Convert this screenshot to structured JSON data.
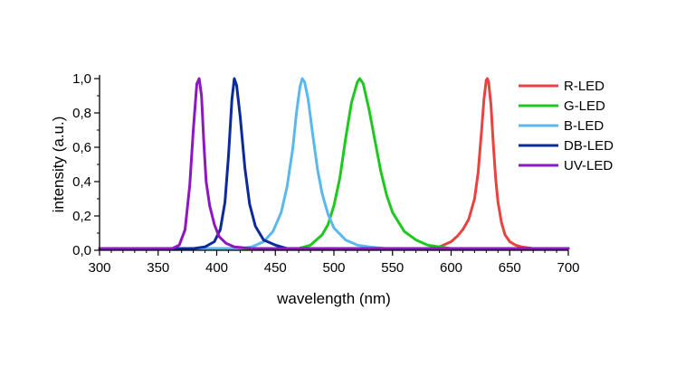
{
  "chart_data": {
    "type": "line",
    "title": "",
    "xlabel": "wavelength (nm)",
    "ylabel": "intensity (a.u.)",
    "xlim": [
      300,
      700
    ],
    "ylim": [
      0,
      1.0
    ],
    "x_ticks": [
      300,
      350,
      400,
      450,
      500,
      550,
      600,
      650,
      700
    ],
    "x_tick_labels": [
      "300",
      "350",
      "400",
      "450",
      "500",
      "550",
      "600",
      "650",
      "700"
    ],
    "y_ticks": [
      0,
      0.2,
      0.4,
      0.6,
      0.8,
      1.0
    ],
    "y_tick_labels": [
      "0,0",
      "0,2",
      "0,4",
      "0,6",
      "0,8",
      "1,0"
    ],
    "grid": false,
    "legend_position": "top-right",
    "series": [
      {
        "name": "R-LED",
        "color": "#e8433f",
        "x": [
          300,
          580,
          590,
          600,
          605,
          610,
          615,
          620,
          623,
          626,
          628,
          630,
          631,
          632,
          634,
          636,
          638,
          640,
          643,
          646,
          650,
          655,
          660,
          670,
          680,
          700
        ],
        "y": [
          0.01,
          0.01,
          0.02,
          0.05,
          0.08,
          0.12,
          0.18,
          0.3,
          0.45,
          0.7,
          0.88,
          0.99,
          1.0,
          0.98,
          0.85,
          0.62,
          0.42,
          0.28,
          0.16,
          0.09,
          0.05,
          0.03,
          0.02,
          0.01,
          0.01,
          0.01
        ]
      },
      {
        "name": "G-LED",
        "color": "#1ec81e",
        "x": [
          300,
          470,
          480,
          490,
          495,
          500,
          505,
          510,
          515,
          520,
          522,
          525,
          530,
          535,
          540,
          545,
          550,
          560,
          570,
          580,
          590,
          600,
          620,
          700
        ],
        "y": [
          0.01,
          0.01,
          0.03,
          0.09,
          0.15,
          0.26,
          0.42,
          0.65,
          0.86,
          0.98,
          1.0,
          0.97,
          0.82,
          0.64,
          0.46,
          0.32,
          0.22,
          0.11,
          0.06,
          0.03,
          0.02,
          0.01,
          0.01,
          0.01
        ]
      },
      {
        "name": "B-LED",
        "color": "#5ab8ee",
        "x": [
          300,
          420,
          430,
          440,
          448,
          455,
          460,
          465,
          468,
          471,
          473,
          475,
          478,
          482,
          486,
          490,
          495,
          500,
          510,
          520,
          530,
          545,
          560,
          700
        ],
        "y": [
          0.01,
          0.01,
          0.02,
          0.05,
          0.11,
          0.22,
          0.37,
          0.6,
          0.8,
          0.95,
          1.0,
          0.98,
          0.88,
          0.67,
          0.47,
          0.33,
          0.21,
          0.13,
          0.06,
          0.03,
          0.02,
          0.01,
          0.01,
          0.01
        ]
      },
      {
        "name": "DB-LED",
        "color": "#0d2a9c",
        "x": [
          300,
          380,
          390,
          398,
          403,
          407,
          410,
          413,
          415,
          417,
          420,
          424,
          428,
          433,
          440,
          450,
          460,
          480,
          700
        ],
        "y": [
          0.01,
          0.01,
          0.02,
          0.05,
          0.12,
          0.28,
          0.55,
          0.88,
          1.0,
          0.96,
          0.78,
          0.48,
          0.27,
          0.14,
          0.06,
          0.03,
          0.01,
          0.01,
          0.01
        ]
      },
      {
        "name": "UV-LED",
        "color": "#8e17bf",
        "x": [
          300,
          362,
          368,
          373,
          377,
          380,
          383,
          385,
          387,
          389,
          391,
          394,
          398,
          402,
          408,
          415,
          430,
          700
        ],
        "y": [
          0.01,
          0.01,
          0.03,
          0.12,
          0.38,
          0.7,
          0.97,
          1.0,
          0.9,
          0.62,
          0.4,
          0.26,
          0.15,
          0.08,
          0.04,
          0.02,
          0.01,
          0.01
        ]
      }
    ]
  }
}
